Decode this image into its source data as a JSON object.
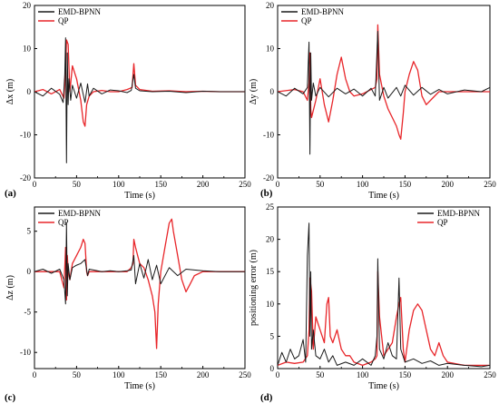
{
  "figure": {
    "colors": {
      "emd": "#1a1a1a",
      "qp": "#e8262a",
      "axis": "#000000",
      "panel_label": "#cc0000",
      "grid": "#ffffff"
    },
    "panels": [
      {
        "panel_label": "(a)",
        "ylabel": "Δx (m)",
        "xlabel": "Time (s)"
      },
      {
        "panel_label": "(b)",
        "ylabel": "Δy (m)",
        "xlabel": "Time (s)"
      },
      {
        "panel_label": "(c)",
        "ylabel": "Δz (m)",
        "xlabel": "Time (s)"
      },
      {
        "panel_label": "(d)",
        "ylabel": "positioning error (m)",
        "xlabel": "Time (s)"
      }
    ]
  },
  "chart_data": [
    {
      "type": "line",
      "title": "",
      "xlabel": "Time (s)",
      "ylabel": "Δx (m)",
      "xlim": [
        0,
        250
      ],
      "ylim": [
        -20,
        20
      ],
      "xticks": [
        0,
        50,
        100,
        150,
        200,
        250
      ],
      "yticks": [
        -20,
        -10,
        0,
        10,
        20
      ],
      "legend": "top-left",
      "series": [
        {
          "name": "EMD-BPNN",
          "color": "#1a1a1a",
          "x": [
            0,
            10,
            20,
            30,
            34,
            36,
            37,
            38,
            39,
            40,
            41,
            43,
            45,
            50,
            55,
            60,
            63,
            65,
            70,
            80,
            90,
            100,
            110,
            115,
            118,
            120,
            125,
            140,
            160,
            180,
            200,
            220,
            250
          ],
          "y": [
            0,
            -1.0,
            0.8,
            -0.6,
            -2.5,
            4,
            12.5,
            -16.5,
            9,
            -3,
            3,
            -2,
            1.5,
            -1.5,
            2,
            -2.5,
            1.8,
            -1,
            0.8,
            -0.5,
            0.4,
            0.2,
            -0.2,
            0.3,
            4,
            0.8,
            0.2,
            0,
            0.1,
            -0.2,
            0.1,
            0,
            0
          ]
        },
        {
          "name": "QP",
          "color": "#e8262a",
          "x": [
            0,
            10,
            20,
            30,
            35,
            37,
            38,
            40,
            42,
            45,
            50,
            55,
            58,
            60,
            62,
            65,
            70,
            80,
            90,
            100,
            110,
            116,
            118,
            120,
            125,
            140,
            160,
            180,
            200,
            220,
            250
          ],
          "y": [
            0,
            0.5,
            -0.5,
            0.5,
            -1.5,
            5,
            12,
            11,
            0,
            6,
            3,
            -2,
            -7,
            -8,
            -3,
            -1,
            0,
            0.3,
            0,
            0,
            0.5,
            1,
            6.5,
            1.5,
            0.5,
            0.1,
            0.2,
            0,
            0.1,
            0,
            0
          ]
        }
      ]
    },
    {
      "type": "line",
      "title": "",
      "xlabel": "Time (s)",
      "ylabel": "Δy (m)",
      "xlim": [
        0,
        250
      ],
      "ylim": [
        -20,
        20
      ],
      "xticks": [
        0,
        50,
        100,
        150,
        200,
        250
      ],
      "yticks": [
        -20,
        -10,
        0,
        10,
        20
      ],
      "legend": "top-left",
      "series": [
        {
          "name": "EMD-BPNN",
          "color": "#1a1a1a",
          "x": [
            0,
            10,
            20,
            30,
            35,
            37,
            38,
            39,
            40,
            42,
            45,
            50,
            60,
            70,
            80,
            90,
            100,
            110,
            115,
            118,
            120,
            125,
            130,
            140,
            145,
            150,
            160,
            170,
            180,
            190,
            200,
            220,
            240,
            250
          ],
          "y": [
            0,
            -1,
            0.8,
            -0.5,
            1,
            11.5,
            -14.5,
            9,
            -2,
            2,
            -1,
            1,
            -1.2,
            0.8,
            -0.5,
            0.6,
            -1,
            0.8,
            -1,
            14,
            -2,
            1,
            -1.5,
            1,
            -1,
            1.5,
            -0.8,
            1,
            -0.6,
            0.5,
            -0.5,
            0.4,
            0,
            1
          ]
        },
        {
          "name": "QP",
          "color": "#e8262a",
          "x": [
            0,
            20,
            30,
            35,
            37,
            38,
            39,
            40,
            45,
            50,
            55,
            60,
            65,
            70,
            75,
            80,
            85,
            90,
            100,
            110,
            115,
            117,
            118,
            120,
            125,
            130,
            135,
            140,
            143,
            145,
            148,
            150,
            155,
            160,
            165,
            170,
            175,
            180,
            190,
            200,
            220,
            250
          ],
          "y": [
            0,
            0.5,
            0,
            -2,
            2,
            9,
            -4,
            -6,
            -2,
            3,
            -3,
            -7,
            -2,
            4,
            8,
            3,
            0,
            -1,
            -0.5,
            0.5,
            1,
            3,
            15.5,
            4,
            -1,
            -4,
            -6,
            -8,
            -10,
            -11,
            -5,
            0,
            4,
            7,
            5,
            -1,
            -3,
            -2,
            0,
            0,
            0,
            0
          ]
        }
      ]
    },
    {
      "type": "line",
      "title": "",
      "xlabel": "Time (s)",
      "ylabel": "Δz (m)",
      "xlim": [
        0,
        250
      ],
      "ylim": [
        -12,
        8
      ],
      "xticks": [
        0,
        50,
        100,
        150,
        200,
        250
      ],
      "yticks": [
        -10,
        -5,
        0,
        5
      ],
      "legend": "top-left",
      "series": [
        {
          "name": "EMD-BPNN",
          "color": "#1a1a1a",
          "x": [
            0,
            10,
            20,
            30,
            35,
            37,
            38,
            39,
            40,
            42,
            45,
            50,
            55,
            60,
            63,
            65,
            70,
            80,
            90,
            100,
            110,
            115,
            118,
            120,
            125,
            130,
            135,
            140,
            145,
            150,
            160,
            170,
            180,
            200,
            220,
            250
          ],
          "y": [
            0,
            0.3,
            -0.2,
            0.3,
            -1,
            -4,
            6,
            -3,
            1,
            -1,
            0.5,
            0.8,
            1,
            1.5,
            -0.5,
            0.3,
            0.2,
            0,
            0.1,
            0,
            0.1,
            0.2,
            2,
            -1.5,
            1,
            -0.8,
            1.5,
            -1,
            0.8,
            -1.5,
            0.5,
            -0.5,
            0.3,
            0.1,
            0,
            0
          ]
        },
        {
          "name": "QP",
          "color": "#e8262a",
          "x": [
            0,
            20,
            30,
            35,
            37,
            38,
            39,
            40,
            42,
            45,
            50,
            55,
            58,
            60,
            62,
            63,
            65,
            70,
            80,
            100,
            110,
            115,
            117,
            118,
            120,
            125,
            130,
            135,
            140,
            143,
            145,
            147,
            150,
            155,
            160,
            163,
            165,
            170,
            175,
            180,
            185,
            190,
            200,
            220,
            250
          ],
          "y": [
            0,
            0,
            0,
            -2,
            3,
            -3.5,
            2,
            0,
            -1,
            1,
            2,
            3,
            4,
            3.5,
            0,
            -0.5,
            0,
            0,
            0,
            0,
            0,
            0.5,
            1,
            4,
            3,
            1,
            0.5,
            -1,
            -3,
            -5,
            -9.5,
            -4,
            0,
            3,
            6,
            6.5,
            5,
            2,
            -1,
            -2.5,
            -1.5,
            -0.5,
            0,
            0,
            0
          ]
        }
      ]
    },
    {
      "type": "line",
      "title": "",
      "xlabel": "Time (s)",
      "ylabel": "positioning error (m)",
      "xlim": [
        0,
        250
      ],
      "ylim": [
        0,
        25
      ],
      "xticks": [
        0,
        50,
        100,
        150,
        200,
        250
      ],
      "yticks": [
        0,
        5,
        10,
        15,
        20,
        25
      ],
      "legend": "top-right",
      "series": [
        {
          "name": "EMD-BPNN",
          "color": "#1a1a1a",
          "x": [
            0,
            5,
            10,
            15,
            20,
            25,
            30,
            33,
            35,
            37,
            38,
            39,
            40,
            42,
            45,
            50,
            55,
            60,
            65,
            70,
            80,
            90,
            100,
            110,
            115,
            117,
            118,
            120,
            125,
            130,
            135,
            140,
            143,
            145,
            150,
            160,
            170,
            180,
            190,
            200,
            220,
            240,
            250
          ],
          "y": [
            0.5,
            2.5,
            1,
            3,
            1.5,
            2,
            4.5,
            1,
            17.5,
            22.5,
            5,
            15,
            3,
            6,
            2,
            1.5,
            3,
            1,
            2,
            0.5,
            1,
            0.5,
            1.5,
            0.5,
            2,
            5,
            17,
            3,
            1.5,
            4,
            2,
            1.5,
            14,
            3,
            1,
            1.5,
            0.8,
            1.2,
            0.5,
            0.8,
            0.5,
            0.3,
            0.5
          ]
        },
        {
          "name": "QP",
          "color": "#e8262a",
          "x": [
            0,
            10,
            20,
            30,
            35,
            37,
            38,
            40,
            42,
            45,
            50,
            55,
            58,
            60,
            62,
            65,
            70,
            75,
            80,
            85,
            90,
            100,
            110,
            115,
            117,
            118,
            120,
            125,
            130,
            135,
            140,
            143,
            145,
            148,
            150,
            155,
            160,
            165,
            170,
            175,
            180,
            185,
            190,
            195,
            200,
            220,
            250
          ],
          "y": [
            0.5,
            1,
            0.8,
            1,
            2,
            6,
            14,
            12,
            3,
            8,
            6,
            4,
            10,
            11,
            5,
            4,
            6,
            3,
            2,
            2,
            1,
            0.5,
            1,
            1.5,
            2,
            15,
            8,
            2,
            3,
            4,
            8,
            10,
            11,
            3,
            1,
            6,
            9,
            10,
            9,
            6,
            3,
            2,
            4,
            2,
            1,
            0.5,
            0.5
          ]
        }
      ]
    }
  ]
}
